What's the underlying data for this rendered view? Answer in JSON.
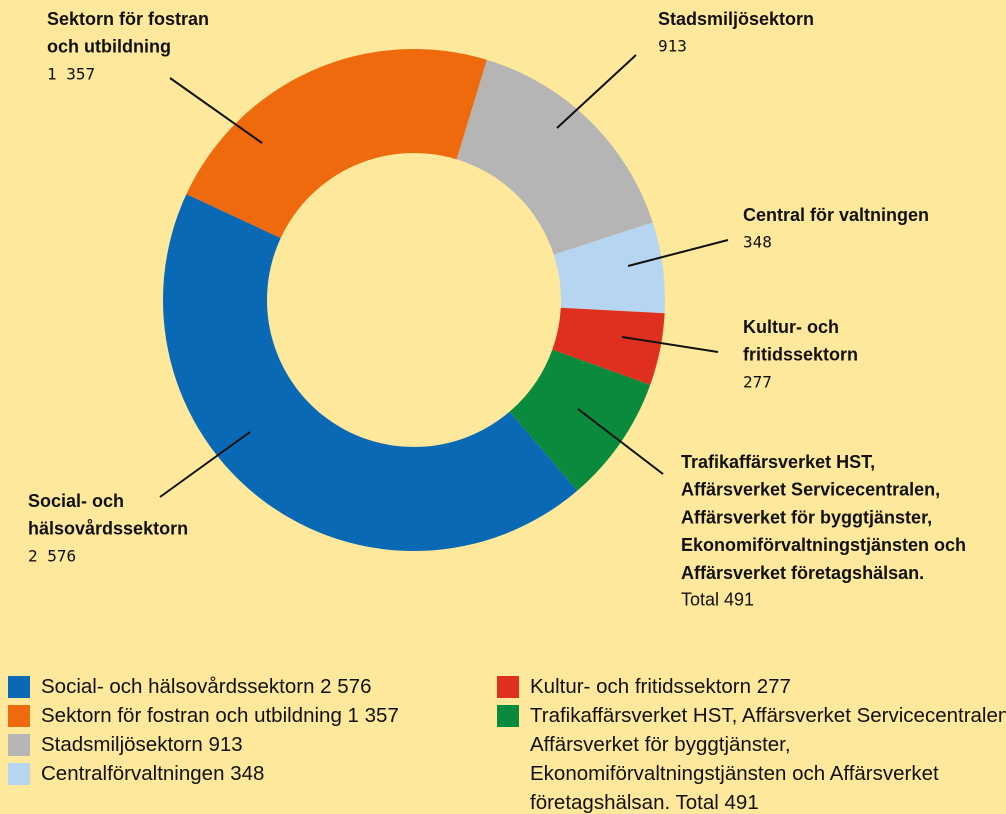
{
  "chart_data": {
    "type": "donut",
    "categories": [
      "Social- och hälsovårdssektorn",
      "Sektorn för fostran och utbildning",
      "Stadsmiljösektorn",
      "Centralförvaltningen",
      "Kultur- och fritidssektorn",
      "Trafikaffärsverket HST, Affärsverket Servicecentralen, Affärsverket för byggtjänster, Ekonomiförvaltningstjänsten och Affärsverket företagshälsan."
    ],
    "values": [
      2576,
      1357,
      913,
      348,
      277,
      491
    ],
    "value_labels": [
      "2 576",
      "1 357",
      "913",
      "348",
      "277",
      "Total 491"
    ],
    "colors": [
      "#0a69b4",
      "#ee6a0c",
      "#b5b5b5",
      "#b6d5f1",
      "#df301f",
      "#0a8a3c"
    ],
    "callouts": [
      [
        "Social- och",
        "hälsovårdssektorn"
      ],
      [
        "Sektorn för fostran",
        "och utbildning"
      ],
      [
        "Stadsmiljösektorn"
      ],
      [
        "Central för valtningen"
      ],
      [
        "Kultur- och",
        "fritidssektorn"
      ],
      [
        "Trafikaffärsverket HST,",
        "Affärsverket Servicecentralen,",
        "Affärsverket för byggtjänster,",
        "Ekonomiförvaltningstjänsten och",
        "Affärsverket företagshälsan."
      ]
    ]
  }
}
